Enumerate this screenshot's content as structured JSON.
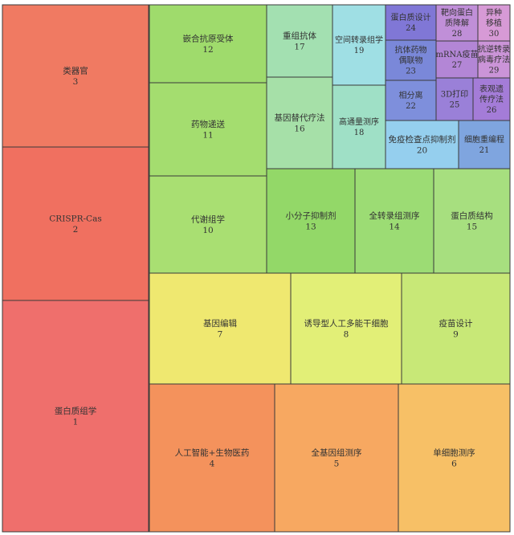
{
  "chart_data": {
    "type": "treemap",
    "items": [
      {
        "label": "蛋白质组学",
        "rank": "1",
        "color": "#ef6f6c"
      },
      {
        "label": "CRISPR-Cas",
        "rank": "2",
        "color": "#f07060"
      },
      {
        "label": "类器官",
        "rank": "3",
        "color": "#f07a62"
      },
      {
        "label": "人工智能+生物医药",
        "rank": "4",
        "color": "#f4925c"
      },
      {
        "label": "全基因组测序",
        "rank": "5",
        "color": "#f7a861"
      },
      {
        "label": "单细胞测序",
        "rank": "6",
        "color": "#f7c066"
      },
      {
        "label": "基因编辑",
        "rank": "7",
        "color": "#efe870"
      },
      {
        "label": "诱导型人工多能干细胞",
        "rank": "8",
        "color": "#e2ef77"
      },
      {
        "label": "疫苗设计",
        "rank": "9",
        "color": "#c8e877"
      },
      {
        "label": "代谢组学",
        "rank": "10",
        "color": "#a9df72"
      },
      {
        "label": "药物递送",
        "rank": "11",
        "color": "#a4dd6f"
      },
      {
        "label": "嵌合抗原受体",
        "rank": "12",
        "color": "#9fdb6c"
      },
      {
        "label": "小分子抑制剂",
        "rank": "13",
        "color": "#93d868"
      },
      {
        "label": "全转录组测序",
        "rank": "14",
        "color": "#9cdc74"
      },
      {
        "label": "蛋白质结构",
        "rank": "15",
        "color": "#a7df7f"
      },
      {
        "label": "基因替代疗法",
        "rank": "16",
        "color": "#a6e0a8"
      },
      {
        "label": "重组抗体",
        "rank": "17",
        "color": "#a3e0b1"
      },
      {
        "label": "高通量测序",
        "rank": "18",
        "color": "#9fe0c6"
      },
      {
        "label": "空间转录组学",
        "rank": "19",
        "color": "#9fdfe4"
      },
      {
        "label": "免疫检查点抑制剂",
        "rank": "20",
        "color": "#95cfee"
      },
      {
        "label": "细胞重编程",
        "rank": "21",
        "color": "#7fa5df"
      },
      {
        "label": "相分离",
        "rank": "22",
        "color": "#7e8fdc"
      },
      {
        "label": "抗体药物偶联物",
        "rank": "23",
        "color": "#7a88d9"
      },
      {
        "label": "蛋白质设计",
        "rank": "24",
        "color": "#8077d6"
      },
      {
        "label": "3D打印",
        "rank": "25",
        "color": "#9a80d8"
      },
      {
        "label": "表观遗传疗法",
        "rank": "26",
        "color": "#a47cd8"
      },
      {
        "label": "mRNA疫苗",
        "rank": "27",
        "color": "#b386d6"
      },
      {
        "label": "靶向蛋白质降解",
        "rank": "28",
        "color": "#c08fd8"
      },
      {
        "label": "抗逆转录病毒疗法",
        "rank": "29",
        "color": "#cb94d8"
      },
      {
        "label": "异种移植",
        "rank": "30",
        "color": "#d79ad6"
      }
    ]
  }
}
